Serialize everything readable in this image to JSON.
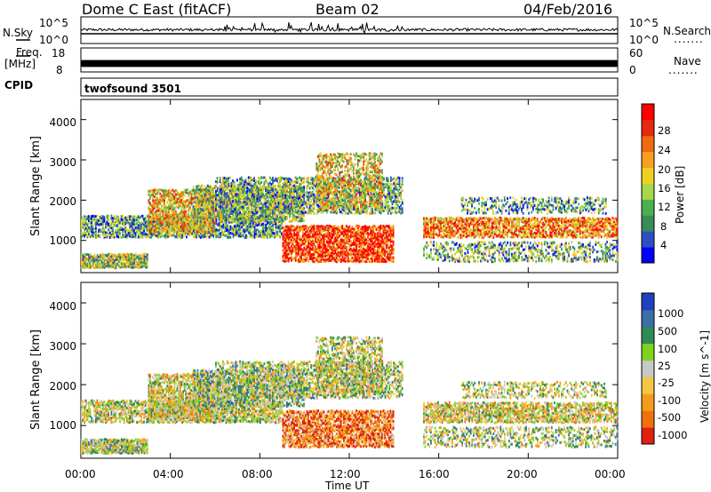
{
  "header": {
    "station": "Dome C East (fitACF)",
    "beam": "Beam 02",
    "date": "04/Feb/2016"
  },
  "top_panel_labels": {
    "nsky": "N.Sky",
    "nsky_ticks": [
      "10^5",
      "10^0"
    ],
    "nsearch": "N.Search",
    "nsearch_ticks": [
      "10^5",
      "10^0"
    ],
    "freq": "Freq.",
    "freq_unit": "[MHz]",
    "freq_ticks": [
      "18",
      "8"
    ],
    "nave": "Nave",
    "nave_ticks": [
      "60",
      "0"
    ],
    "cpid_label": "CPID",
    "cpid_value": "twofsound 3501",
    "dots": "......."
  },
  "chart_data": [
    {
      "type": "heatmap",
      "title": "",
      "ylabel": "Slant Range [km]",
      "xlabel": "",
      "ylim": [
        200,
        4500
      ],
      "xlim": [
        0,
        24
      ],
      "yticks": [
        "1000",
        "2000",
        "3000",
        "4000"
      ],
      "colorbar_label": "Power [dB]",
      "colorbar_ticks": [
        "4",
        "8",
        "12",
        "16",
        "20",
        "24",
        "28"
      ],
      "colorscale": [
        "#0000ff",
        "#2f4fc0",
        "#3a8a5a",
        "#4caf50",
        "#a6d84a",
        "#f0d020",
        "#f7a020",
        "#f06a10",
        "#e52a10",
        "#ff0000"
      ]
    },
    {
      "type": "heatmap",
      "title": "",
      "ylabel": "Slant Range [km]",
      "xlabel": "Time UT",
      "ylim": [
        200,
        4500
      ],
      "xlim": [
        0,
        24
      ],
      "yticks": [
        "1000",
        "2000",
        "3000",
        "4000"
      ],
      "xticks": [
        "00:00",
        "04:00",
        "08:00",
        "12:00",
        "16:00",
        "20:00",
        "00:00"
      ],
      "colorbar_label": "Velocity [m s^-1]",
      "colorbar_ticks": [
        "1000",
        "500",
        "100",
        "25",
        "-25",
        "-100",
        "-500",
        "-1000"
      ],
      "colorscale": [
        "#2040c0",
        "#3a6ea8",
        "#2e8b57",
        "#7ed321",
        "#c8c8c8",
        "#f5c542",
        "#f59b1a",
        "#f07010",
        "#e02010"
      ]
    }
  ]
}
